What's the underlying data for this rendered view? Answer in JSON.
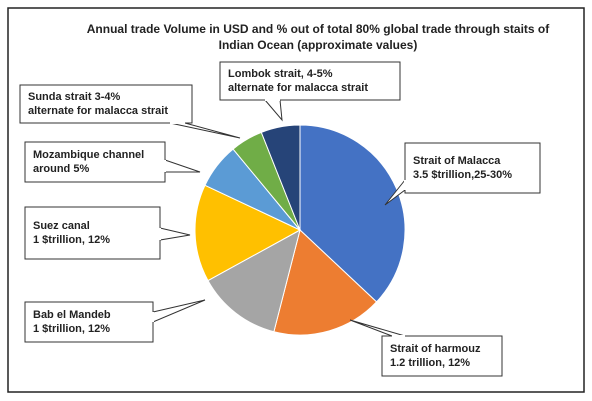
{
  "chart_data": {
    "type": "pie",
    "title": [
      "Annual trade Volume in USD and % out of total 80% global trade through staits of",
      "Indian Ocean (approximate values)"
    ],
    "categories": [
      [
        "Strait of Malacca",
        "3.5 $trillion,25-30%"
      ],
      [
        "Strait of harmouz",
        "1.2 trillion, 12%"
      ],
      [
        "Bab el Mandeb",
        "1 $trillion, 12%"
      ],
      [
        "Suez canal",
        "1 $trillion, 12%"
      ],
      [
        "Mozambique channel",
        "around 5%"
      ],
      [
        "Sunda strait  3-4%",
        "alternate for malacca strait"
      ],
      [
        "Lombok strait, 4-5%",
        "alternate for malacca strait"
      ]
    ],
    "values": [
      37,
      17,
      13,
      15,
      7,
      5,
      6
    ],
    "colors": [
      "#4472c4",
      "#ed7d31",
      "#a5a5a5",
      "#ffc000",
      "#5b9bd5",
      "#70ad47",
      "#264478"
    ]
  }
}
